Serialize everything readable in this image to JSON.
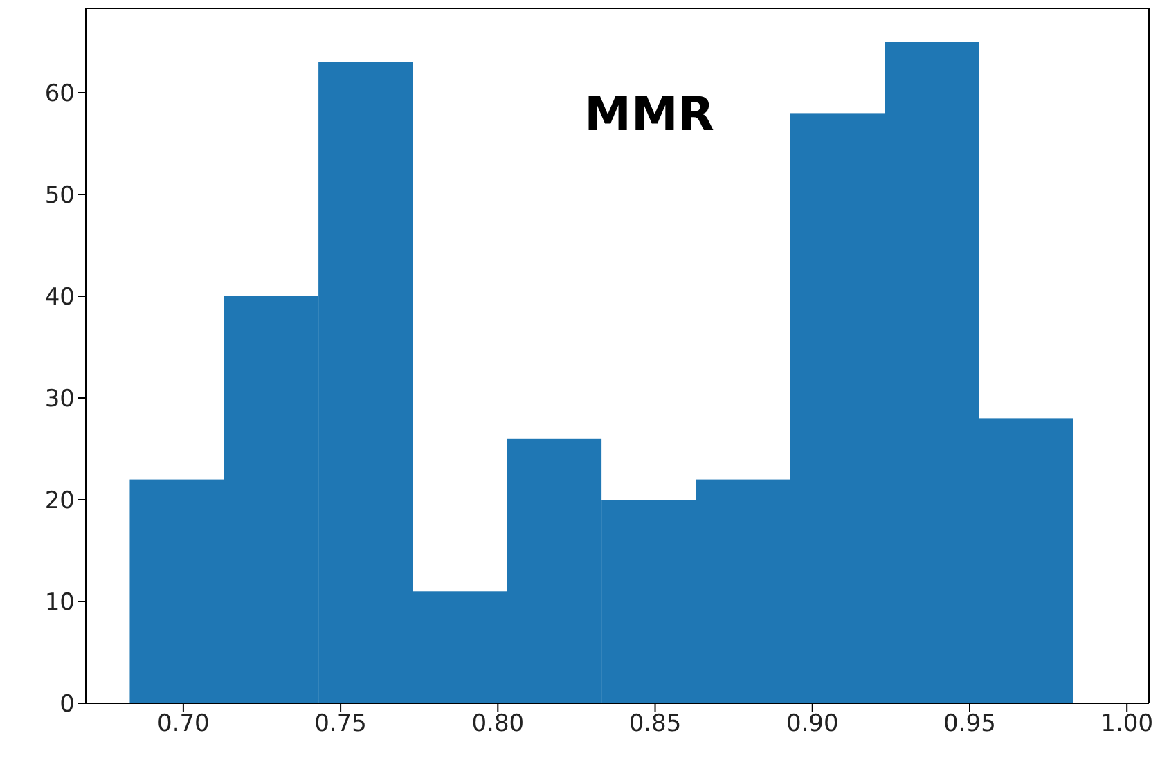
{
  "chart_data": {
    "type": "histogram",
    "title": "MMR",
    "bins": [
      0.683,
      0.713,
      0.743,
      0.773,
      0.803,
      0.833,
      0.863,
      0.893,
      0.923,
      0.953,
      0.983
    ],
    "values": [
      22,
      40,
      63,
      11,
      26,
      20,
      22,
      58,
      65,
      28
    ],
    "color": "#1f77b4",
    "xlim": [
      0.669,
      1.007
    ],
    "xticks": [
      {
        "value": 0.7,
        "label": "0.70"
      },
      0.75,
      {
        "value": 0.8,
        "label": "0.80"
      },
      0.85,
      {
        "value": 0.9,
        "label": "0.90"
      },
      0.95,
      {
        "value": 1.0,
        "label": "1.00"
      }
    ],
    "ylim": [
      0,
      68.3
    ],
    "yticks": [
      0,
      10,
      20,
      30,
      40,
      50,
      60
    ],
    "grid": false
  }
}
